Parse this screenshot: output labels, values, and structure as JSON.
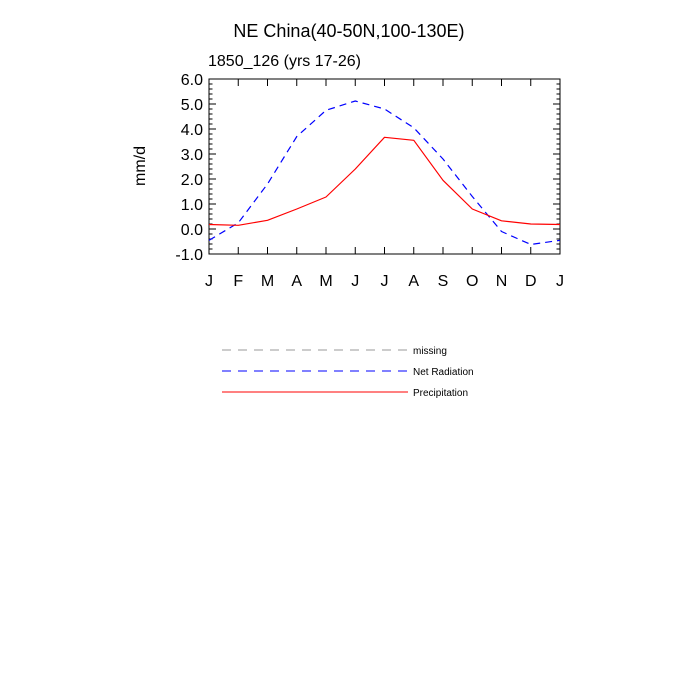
{
  "chart_data": {
    "type": "line",
    "title": "NE China(40-50N,100-130E)",
    "subtitle": "1850_126 (yrs 17-26)",
    "ylabel": "mm/d",
    "ylim": [
      -1.0,
      6.0
    ],
    "yticks": [
      "-1.0",
      "0.0",
      "1.0",
      "2.0",
      "3.0",
      "4.0",
      "5.0",
      "6.0"
    ],
    "x": [
      "J",
      "F",
      "M",
      "A",
      "M",
      "J",
      "J",
      "A",
      "S",
      "O",
      "N",
      "D",
      "J"
    ],
    "series": [
      {
        "name": "Net Radiation",
        "color": "#0000ff",
        "dash": "dashed",
        "values": [
          -0.45,
          0.25,
          1.8,
          3.7,
          4.75,
          5.12,
          4.8,
          4.05,
          2.8,
          1.3,
          -0.1,
          -0.62,
          -0.45
        ]
      },
      {
        "name": "Precipitation",
        "color": "#ff0000",
        "dash": "solid",
        "values": [
          0.18,
          0.15,
          0.35,
          0.8,
          1.28,
          2.4,
          3.67,
          3.55,
          1.95,
          0.8,
          0.33,
          0.2,
          0.18
        ]
      }
    ],
    "legend": [
      {
        "label": "missing",
        "color": "#999999",
        "dash": "dashed"
      },
      {
        "label": "Net Radiation",
        "color": "#0000ff",
        "dash": "dashed"
      },
      {
        "label": "Precipitation",
        "color": "#ff0000",
        "dash": "solid"
      }
    ]
  }
}
